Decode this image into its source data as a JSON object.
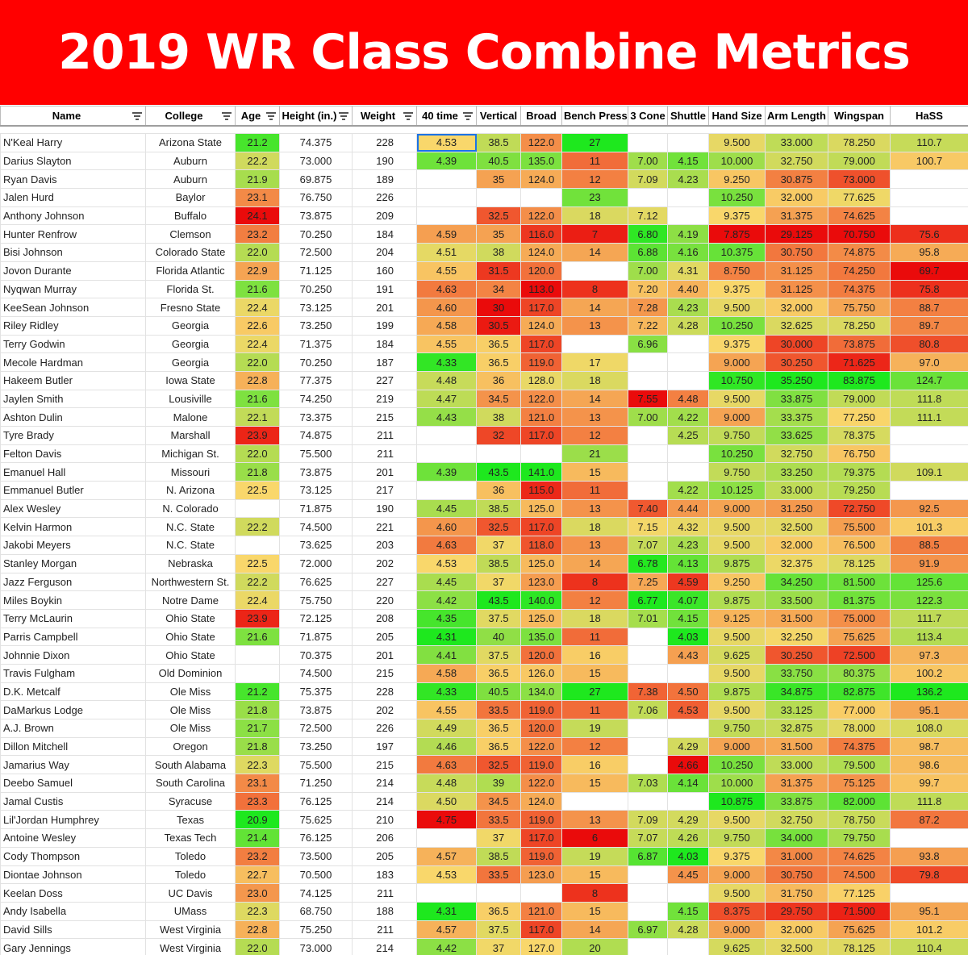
{
  "banner": {
    "title": "2019 WR Class Combine Metrics"
  },
  "columns": [
    {
      "key": "name",
      "label": "Name",
      "filter": true
    },
    {
      "key": "college",
      "label": "College",
      "filter": true
    },
    {
      "key": "age",
      "label": "Age",
      "filter": true
    },
    {
      "key": "height",
      "label": "Height (in.)",
      "filter": true
    },
    {
      "key": "weight",
      "label": "Weight",
      "filter": true
    },
    {
      "key": "forty",
      "label": "40 time",
      "filter": true
    },
    {
      "key": "vertical",
      "label": "Vertical",
      "filter": false
    },
    {
      "key": "broad",
      "label": "Broad",
      "filter": false
    },
    {
      "key": "bench",
      "label": "Bench Press",
      "filter": false
    },
    {
      "key": "cone",
      "label": "3 Cone",
      "filter": false
    },
    {
      "key": "shuttle",
      "label": "Shuttle",
      "filter": false
    },
    {
      "key": "hand",
      "label": "Hand Size",
      "filter": false
    },
    {
      "key": "arm",
      "label": "Arm Length",
      "filter": false
    },
    {
      "key": "wing",
      "label": "Wingspan",
      "filter": false
    },
    {
      "key": "hass",
      "label": "HaSS",
      "filter": false
    }
  ],
  "color_scale": {
    "low": "#ea0b0b",
    "mid": "#f9d76b",
    "high": "#1ee81e"
  },
  "rows": [
    [
      "N'Keal Harry",
      "Arizona State",
      "21.2",
      "74.375",
      "228",
      "4.53",
      "38.5",
      "122.0",
      "27",
      "",
      "",
      "9.500",
      "33.000",
      "78.250",
      "110.7"
    ],
    [
      "Darius Slayton",
      "Auburn",
      "22.2",
      "73.000",
      "190",
      "4.39",
      "40.5",
      "135.0",
      "11",
      "7.00",
      "4.15",
      "10.000",
      "32.750",
      "79.000",
      "100.7"
    ],
    [
      "Ryan Davis",
      "Auburn",
      "21.9",
      "69.875",
      "189",
      "",
      "35",
      "124.0",
      "12",
      "7.09",
      "4.23",
      "9.250",
      "30.875",
      "73.000",
      ""
    ],
    [
      "Jalen Hurd",
      "Baylor",
      "23.1",
      "76.750",
      "226",
      "",
      "",
      "",
      "23",
      "",
      "",
      "10.250",
      "32.000",
      "77.625",
      ""
    ],
    [
      "Anthony Johnson",
      "Buffalo",
      "24.1",
      "73.875",
      "209",
      "",
      "32.5",
      "122.0",
      "18",
      "7.12",
      "",
      "9.375",
      "31.375",
      "74.625",
      ""
    ],
    [
      "Hunter Renfrow",
      "Clemson",
      "23.2",
      "70.250",
      "184",
      "4.59",
      "35",
      "116.0",
      "7",
      "6.80",
      "4.19",
      "7.875",
      "29.125",
      "70.750",
      "75.6"
    ],
    [
      "Bisi Johnson",
      "Colorado State",
      "22.0",
      "72.500",
      "204",
      "4.51",
      "38",
      "124.0",
      "14",
      "6.88",
      "4.16",
      "10.375",
      "30.750",
      "74.875",
      "95.8"
    ],
    [
      "Jovon Durante",
      "Florida Atlantic",
      "22.9",
      "71.125",
      "160",
      "4.55",
      "31.5",
      "120.0",
      "",
      "7.00",
      "4.31",
      "8.750",
      "31.125",
      "74.250",
      "69.7"
    ],
    [
      "Nyqwan Murray",
      "Florida St.",
      "21.6",
      "70.250",
      "191",
      "4.63",
      "34",
      "113.0",
      "8",
      "7.20",
      "4.40",
      "9.375",
      "31.125",
      "74.375",
      "75.8"
    ],
    [
      "KeeSean Johnson",
      "Fresno State",
      "22.4",
      "73.125",
      "201",
      "4.60",
      "30",
      "117.0",
      "14",
      "7.28",
      "4.23",
      "9.500",
      "32.000",
      "75.750",
      "88.7"
    ],
    [
      "Riley Ridley",
      "Georgia",
      "22.6",
      "73.250",
      "199",
      "4.58",
      "30.5",
      "124.0",
      "13",
      "7.22",
      "4.28",
      "10.250",
      "32.625",
      "78.250",
      "89.7"
    ],
    [
      "Terry Godwin",
      "Georgia",
      "22.4",
      "71.375",
      "184",
      "4.55",
      "36.5",
      "117.0",
      "",
      "6.96",
      "",
      "9.375",
      "30.000",
      "73.875",
      "80.8"
    ],
    [
      "Mecole Hardman",
      "Georgia",
      "22.0",
      "70.250",
      "187",
      "4.33",
      "36.5",
      "119.0",
      "17",
      "",
      "",
      "9.000",
      "30.250",
      "71.625",
      "97.0"
    ],
    [
      "Hakeem Butler",
      "Iowa State",
      "22.8",
      "77.375",
      "227",
      "4.48",
      "36",
      "128.0",
      "18",
      "",
      "",
      "10.750",
      "35.250",
      "83.875",
      "124.7"
    ],
    [
      "Jaylen Smith",
      "Lousiville",
      "21.6",
      "74.250",
      "219",
      "4.47",
      "34.5",
      "122.0",
      "14",
      "7.55",
      "4.48",
      "9.500",
      "33.875",
      "79.000",
      "111.8"
    ],
    [
      "Ashton Dulin",
      "Malone",
      "22.1",
      "73.375",
      "215",
      "4.43",
      "38",
      "121.0",
      "13",
      "7.00",
      "4.22",
      "9.000",
      "33.375",
      "77.250",
      "111.1"
    ],
    [
      "Tyre Brady",
      "Marshall",
      "23.9",
      "74.875",
      "211",
      "",
      "32",
      "117.0",
      "12",
      "",
      "4.25",
      "9.750",
      "33.625",
      "78.375",
      ""
    ],
    [
      "Felton Davis",
      "Michigan St.",
      "22.0",
      "75.500",
      "211",
      "",
      "",
      "",
      "21",
      "",
      "",
      "10.250",
      "32.750",
      "76.750",
      ""
    ],
    [
      "Emanuel Hall",
      "Missouri",
      "21.8",
      "73.875",
      "201",
      "4.39",
      "43.5",
      "141.0",
      "15",
      "",
      "",
      "9.750",
      "33.250",
      "79.375",
      "109.1"
    ],
    [
      "Emmanuel Butler",
      "N. Arizona",
      "22.5",
      "73.125",
      "217",
      "",
      "36",
      "115.0",
      "11",
      "",
      "4.22",
      "10.125",
      "33.000",
      "79.250",
      ""
    ],
    [
      "Alex Wesley",
      "N. Colorado",
      "",
      "71.875",
      "190",
      "4.45",
      "38.5",
      "125.0",
      "13",
      "7.40",
      "4.44",
      "9.000",
      "31.250",
      "72.750",
      "92.5"
    ],
    [
      "Kelvin Harmon",
      "N.C. State",
      "22.2",
      "74.500",
      "221",
      "4.60",
      "32.5",
      "117.0",
      "18",
      "7.15",
      "4.32",
      "9.500",
      "32.500",
      "75.500",
      "101.3"
    ],
    [
      "Jakobi Meyers",
      "N.C. State",
      "",
      "73.625",
      "203",
      "4.63",
      "37",
      "118.0",
      "13",
      "7.07",
      "4.23",
      "9.500",
      "32.000",
      "76.500",
      "88.5"
    ],
    [
      "Stanley Morgan",
      "Nebraska",
      "22.5",
      "72.000",
      "202",
      "4.53",
      "38.5",
      "125.0",
      "14",
      "6.78",
      "4.13",
      "9.875",
      "32.375",
      "78.125",
      "91.9"
    ],
    [
      "Jazz Ferguson",
      "Northwestern St.",
      "22.2",
      "76.625",
      "227",
      "4.45",
      "37",
      "123.0",
      "8",
      "7.25",
      "4.59",
      "9.250",
      "34.250",
      "81.500",
      "125.6"
    ],
    [
      "Miles Boykin",
      "Notre Dame",
      "22.4",
      "75.750",
      "220",
      "4.42",
      "43.5",
      "140.0",
      "12",
      "6.77",
      "4.07",
      "9.875",
      "33.500",
      "81.375",
      "122.3"
    ],
    [
      "Terry McLaurin",
      "Ohio State",
      "23.9",
      "72.125",
      "208",
      "4.35",
      "37.5",
      "125.0",
      "18",
      "7.01",
      "4.15",
      "9.125",
      "31.500",
      "75.000",
      "111.7"
    ],
    [
      "Parris Campbell",
      "Ohio State",
      "21.6",
      "71.875",
      "205",
      "4.31",
      "40",
      "135.0",
      "11",
      "",
      "4.03",
      "9.500",
      "32.250",
      "75.625",
      "113.4"
    ],
    [
      "Johnnie Dixon",
      "Ohio State",
      "",
      "70.375",
      "201",
      "4.41",
      "37.5",
      "120.0",
      "16",
      "",
      "4.43",
      "9.625",
      "30.250",
      "72.500",
      "97.3"
    ],
    [
      "Travis Fulgham",
      "Old Dominion",
      "",
      "74.500",
      "215",
      "4.58",
      "36.5",
      "126.0",
      "15",
      "",
      "",
      "9.500",
      "33.750",
      "80.375",
      "100.2"
    ],
    [
      "D.K. Metcalf",
      "Ole Miss",
      "21.2",
      "75.375",
      "228",
      "4.33",
      "40.5",
      "134.0",
      "27",
      "7.38",
      "4.50",
      "9.875",
      "34.875",
      "82.875",
      "136.2"
    ],
    [
      "DaMarkus Lodge",
      "Ole Miss",
      "21.8",
      "73.875",
      "202",
      "4.55",
      "33.5",
      "119.0",
      "11",
      "7.06",
      "4.53",
      "9.500",
      "33.125",
      "77.000",
      "95.1"
    ],
    [
      "A.J. Brown",
      "Ole Miss",
      "21.7",
      "72.500",
      "226",
      "4.49",
      "36.5",
      "120.0",
      "19",
      "",
      "",
      "9.750",
      "32.875",
      "78.000",
      "108.0"
    ],
    [
      "Dillon Mitchell",
      "Oregon",
      "21.8",
      "73.250",
      "197",
      "4.46",
      "36.5",
      "122.0",
      "12",
      "",
      "4.29",
      "9.000",
      "31.500",
      "74.375",
      "98.7"
    ],
    [
      "Jamarius Way",
      "South Alabama",
      "22.3",
      "75.500",
      "215",
      "4.63",
      "32.5",
      "119.0",
      "16",
      "",
      "4.66",
      "10.250",
      "33.000",
      "79.500",
      "98.6"
    ],
    [
      "Deebo Samuel",
      "South Carolina",
      "23.1",
      "71.250",
      "214",
      "4.48",
      "39",
      "122.0",
      "15",
      "7.03",
      "4.14",
      "10.000",
      "31.375",
      "75.125",
      "99.7"
    ],
    [
      "Jamal Custis",
      "Syracuse",
      "23.3",
      "76.125",
      "214",
      "4.50",
      "34.5",
      "124.0",
      "",
      "",
      "",
      "10.875",
      "33.875",
      "82.000",
      "111.8"
    ],
    [
      "Lil'Jordan Humphrey",
      "Texas",
      "20.9",
      "75.625",
      "210",
      "4.75",
      "33.5",
      "119.0",
      "13",
      "7.09",
      "4.29",
      "9.500",
      "32.750",
      "78.750",
      "87.2"
    ],
    [
      "Antoine Wesley",
      "Texas Tech",
      "21.4",
      "76.125",
      "206",
      "",
      "37",
      "117.0",
      "6",
      "7.07",
      "4.26",
      "9.750",
      "34.000",
      "79.750",
      ""
    ],
    [
      "Cody Thompson",
      "Toledo",
      "23.2",
      "73.500",
      "205",
      "4.57",
      "38.5",
      "119.0",
      "19",
      "6.87",
      "4.03",
      "9.375",
      "31.000",
      "74.625",
      "93.8"
    ],
    [
      "Diontae Johnson",
      "Toledo",
      "22.7",
      "70.500",
      "183",
      "4.53",
      "33.5",
      "123.0",
      "15",
      "",
      "4.45",
      "9.000",
      "30.750",
      "74.500",
      "79.8"
    ],
    [
      "Keelan Doss",
      "UC Davis",
      "23.0",
      "74.125",
      "211",
      "",
      "",
      "",
      "8",
      "",
      "",
      "9.500",
      "31.750",
      "77.125",
      ""
    ],
    [
      "Andy Isabella",
      "UMass",
      "22.3",
      "68.750",
      "188",
      "4.31",
      "36.5",
      "121.0",
      "15",
      "",
      "4.15",
      "8.375",
      "29.750",
      "71.500",
      "95.1"
    ],
    [
      "David Sills",
      "West Virginia",
      "22.8",
      "75.250",
      "211",
      "4.57",
      "37.5",
      "117.0",
      "14",
      "6.97",
      "4.28",
      "9.000",
      "32.000",
      "75.625",
      "101.2"
    ],
    [
      "Gary Jennings",
      "West Virginia",
      "22.0",
      "73.000",
      "214",
      "4.42",
      "37",
      "127.0",
      "20",
      "",
      "",
      "9.625",
      "32.500",
      "78.125",
      "110.4"
    ]
  ]
}
